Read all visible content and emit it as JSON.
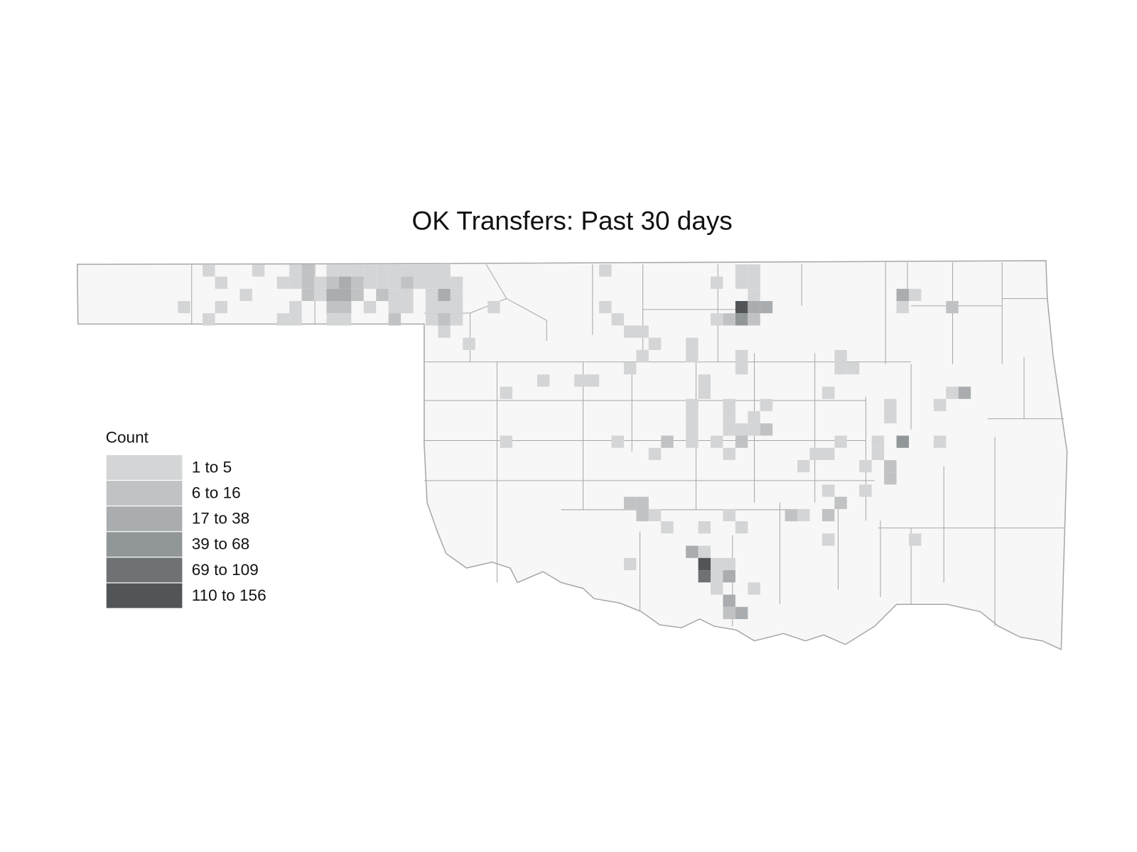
{
  "chart_data": {
    "type": "grid-map",
    "title": "OK Transfers: Past 30 days",
    "legend_title": "Count",
    "classes": [
      {
        "label": "1 to 5",
        "color": "#d4d5d6"
      },
      {
        "label": "6 to 16",
        "color": "#c0c2c4"
      },
      {
        "label": "17 to 38",
        "color": "#a9adaf"
      },
      {
        "label": "39 to 68",
        "color": "#919698"
      },
      {
        "label": "69 to 109",
        "color": "#6e7274"
      },
      {
        "label": "110 to 156",
        "color": "#525558"
      }
    ],
    "cells": [
      [
        2,
        0,
        0
      ],
      [
        6,
        0,
        0
      ],
      [
        9,
        0,
        0
      ],
      [
        10,
        0,
        1
      ],
      [
        12,
        0,
        0
      ],
      [
        13,
        0,
        0
      ],
      [
        14,
        0,
        0
      ],
      [
        15,
        0,
        0
      ],
      [
        16,
        0,
        0
      ],
      [
        17,
        0,
        0
      ],
      [
        18,
        0,
        0
      ],
      [
        19,
        0,
        0
      ],
      [
        20,
        0,
        0
      ],
      [
        21,
        0,
        0
      ],
      [
        3,
        1,
        0
      ],
      [
        8,
        1,
        0
      ],
      [
        9,
        1,
        0
      ],
      [
        10,
        1,
        1
      ],
      [
        11,
        1,
        0
      ],
      [
        12,
        1,
        1
      ],
      [
        13,
        1,
        2
      ],
      [
        14,
        1,
        1
      ],
      [
        15,
        1,
        0
      ],
      [
        16,
        1,
        0
      ],
      [
        17,
        1,
        0
      ],
      [
        18,
        1,
        1
      ],
      [
        19,
        1,
        0
      ],
      [
        20,
        1,
        0
      ],
      [
        21,
        1,
        0
      ],
      [
        22,
        1,
        0
      ],
      [
        5,
        2,
        0
      ],
      [
        10,
        2,
        1
      ],
      [
        11,
        2,
        0
      ],
      [
        12,
        2,
        2
      ],
      [
        13,
        2,
        2
      ],
      [
        14,
        2,
        1
      ],
      [
        16,
        2,
        1
      ],
      [
        17,
        2,
        0
      ],
      [
        18,
        2,
        0
      ],
      [
        20,
        2,
        0
      ],
      [
        21,
        2,
        2
      ],
      [
        22,
        2,
        0
      ],
      [
        0,
        3,
        0
      ],
      [
        3,
        3,
        0
      ],
      [
        9,
        3,
        0
      ],
      [
        12,
        3,
        1
      ],
      [
        13,
        3,
        1
      ],
      [
        15,
        3,
        0
      ],
      [
        17,
        3,
        0
      ],
      [
        18,
        3,
        0
      ],
      [
        20,
        3,
        0
      ],
      [
        21,
        3,
        0
      ],
      [
        22,
        3,
        0
      ],
      [
        25,
        3,
        0
      ],
      [
        2,
        4,
        0
      ],
      [
        8,
        4,
        0
      ],
      [
        9,
        4,
        0
      ],
      [
        12,
        4,
        0
      ],
      [
        13,
        4,
        0
      ],
      [
        17,
        4,
        1
      ],
      [
        20,
        4,
        0
      ],
      [
        21,
        4,
        1
      ],
      [
        22,
        4,
        0
      ],
      [
        21,
        5,
        0
      ],
      [
        23,
        6,
        0
      ],
      [
        34,
        0,
        0
      ],
      [
        45,
        0,
        0
      ],
      [
        46,
        0,
        0
      ],
      [
        45,
        1,
        0
      ],
      [
        46,
        1,
        0
      ],
      [
        43,
        1,
        0
      ],
      [
        46,
        2,
        0
      ],
      [
        34,
        3,
        0
      ],
      [
        45,
        3,
        5
      ],
      [
        46,
        3,
        2
      ],
      [
        47,
        3,
        2
      ],
      [
        58,
        2,
        2
      ],
      [
        59,
        2,
        0
      ],
      [
        58,
        3,
        0
      ],
      [
        62,
        3,
        1
      ],
      [
        35,
        4,
        0
      ],
      [
        43,
        4,
        0
      ],
      [
        44,
        4,
        1
      ],
      [
        45,
        4,
        3
      ],
      [
        46,
        4,
        1
      ],
      [
        36,
        5,
        0
      ],
      [
        37,
        5,
        0
      ],
      [
        38,
        6,
        0
      ],
      [
        41,
        6,
        0
      ],
      [
        41,
        7,
        0
      ],
      [
        37,
        7,
        0
      ],
      [
        45,
        7,
        0
      ],
      [
        45,
        8,
        0
      ],
      [
        53,
        7,
        0
      ],
      [
        53,
        8,
        0
      ],
      [
        54,
        8,
        0
      ],
      [
        36,
        8,
        0
      ],
      [
        29,
        9,
        0
      ],
      [
        32,
        9,
        0
      ],
      [
        33,
        9,
        0
      ],
      [
        26,
        10,
        0
      ],
      [
        42,
        9,
        0
      ],
      [
        42,
        10,
        0
      ],
      [
        52,
        10,
        0
      ],
      [
        62,
        10,
        0
      ],
      [
        63,
        10,
        2
      ],
      [
        41,
        11,
        0
      ],
      [
        47,
        11,
        0
      ],
      [
        44,
        11,
        0
      ],
      [
        57,
        11,
        0
      ],
      [
        61,
        11,
        0
      ],
      [
        57,
        12,
        0
      ],
      [
        41,
        12,
        0
      ],
      [
        41,
        13,
        0
      ],
      [
        44,
        12,
        0
      ],
      [
        44,
        13,
        0
      ],
      [
        46,
        12,
        0
      ],
      [
        46,
        13,
        0
      ],
      [
        45,
        13,
        0
      ],
      [
        47,
        13,
        1
      ],
      [
        26,
        14,
        0
      ],
      [
        35,
        14,
        0
      ],
      [
        39,
        14,
        1
      ],
      [
        41,
        14,
        0
      ],
      [
        43,
        14,
        0
      ],
      [
        45,
        14,
        1
      ],
      [
        58,
        14,
        3
      ],
      [
        61,
        14,
        0
      ],
      [
        56,
        14,
        0
      ],
      [
        53,
        14,
        0
      ],
      [
        56,
        15,
        0
      ],
      [
        38,
        15,
        0
      ],
      [
        44,
        15,
        0
      ],
      [
        51,
        15,
        0
      ],
      [
        52,
        15,
        0
      ],
      [
        57,
        16,
        1
      ],
      [
        55,
        16,
        0
      ],
      [
        50,
        16,
        0
      ],
      [
        57,
        17,
        1
      ],
      [
        52,
        18,
        0
      ],
      [
        55,
        18,
        0
      ],
      [
        36,
        19,
        1
      ],
      [
        37,
        19,
        1
      ],
      [
        53,
        19,
        1
      ],
      [
        37,
        20,
        1
      ],
      [
        38,
        20,
        0
      ],
      [
        44,
        20,
        0
      ],
      [
        49,
        20,
        1
      ],
      [
        50,
        20,
        0
      ],
      [
        52,
        20,
        1
      ],
      [
        39,
        21,
        0
      ],
      [
        42,
        21,
        0
      ],
      [
        45,
        21,
        0
      ],
      [
        52,
        22,
        0
      ],
      [
        59,
        22,
        0
      ],
      [
        36,
        24,
        0
      ],
      [
        41,
        23,
        2
      ],
      [
        42,
        23,
        0
      ],
      [
        42,
        24,
        5
      ],
      [
        43,
        24,
        0
      ],
      [
        44,
        24,
        0
      ],
      [
        42,
        25,
        4
      ],
      [
        43,
        25,
        0
      ],
      [
        44,
        25,
        2
      ],
      [
        46,
        26,
        0
      ],
      [
        43,
        26,
        0
      ],
      [
        44,
        27,
        2
      ],
      [
        44,
        28,
        1
      ],
      [
        45,
        28,
        2
      ]
    ]
  }
}
